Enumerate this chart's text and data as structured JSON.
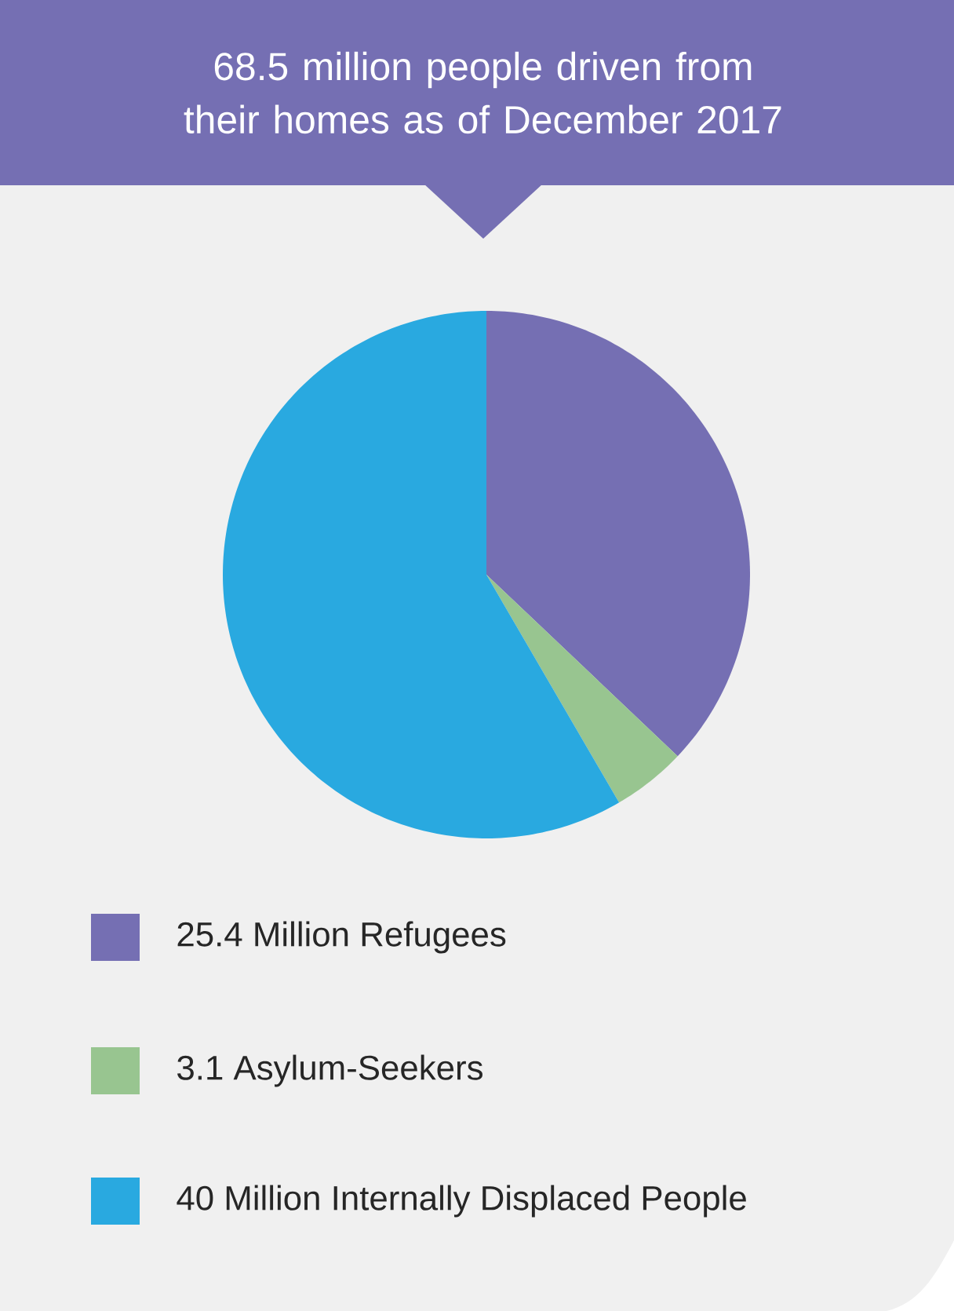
{
  "chart_data": {
    "type": "pie",
    "title": "68.5 million people driven from their homes as of December 2017",
    "categories": [
      "25.4 Million Refugees",
      "3.1 Asylum-Seekers",
      "40 Million Internally Displaced People"
    ],
    "values": [
      25.4,
      3.1,
      40
    ],
    "colors": [
      "#756fb3",
      "#98c590",
      "#29a9e0"
    ],
    "legend": "bottom"
  }
}
